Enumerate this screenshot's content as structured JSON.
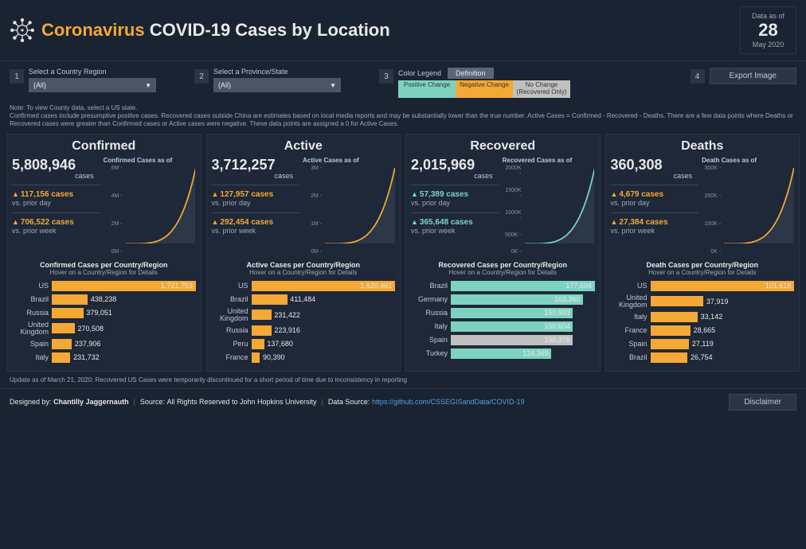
{
  "header": {
    "title_orange": "Coronavirus",
    "title_rest": " COVID-19 Cases by Location",
    "date_label": "Data as of",
    "date_day": "28",
    "date_month": "May 2020"
  },
  "controls": {
    "country_label": "Select a Country Region",
    "country_value": "(All)",
    "state_label": "Select a Province/State",
    "state_value": "(All)",
    "legend_label": "Color Legend",
    "definition_btn": "Definition",
    "legend_items": [
      {
        "label": "Positive Change",
        "color": "#7dd3c0"
      },
      {
        "label": "Negative Change",
        "color": "#f4a836"
      },
      {
        "label": "No Change (Recovered Only)",
        "color": "#c0c0c0"
      }
    ],
    "export_btn": "Export Image"
  },
  "notes": {
    "line1": "Note: To view County data, select a US state.",
    "line2": "Confirmed cases include presumptive positive cases. Recovered cases outside China are estimates based on local media reports and may be substantially lower than the true number.  Active Cases = Confirmed - Recovered - Deaths. There are a few data points where Deaths or Recovered cases were greater than Confirmed cases or Active cases were negative. These data points are assigned a 0 for Active Cases."
  },
  "panels": [
    {
      "title": "Confirmed",
      "total": "5,808,946",
      "cases_label": "cases",
      "delta_day": "117,156 cases",
      "delta_day_sub": "vs. prior day",
      "delta_week": "706,522 cases",
      "delta_week_sub": "vs. prior week",
      "delta_color": "orange",
      "chart_title": "Confirmed Cases as of",
      "chart_color": "#f4a836",
      "y_ticks": [
        "6M -",
        "4M -",
        "2M -",
        "0M -"
      ],
      "bars_title": "Confirmed Cases per Country/Region",
      "bars_sub": "Hover on a Country/Region for Details",
      "bar_color": "#f4a836",
      "bars": [
        {
          "label": "US",
          "value": "1,721,753",
          "pct": 100
        },
        {
          "label": "Brazil",
          "value": "438,238",
          "pct": 25
        },
        {
          "label": "Russia",
          "value": "379,051",
          "pct": 22
        },
        {
          "label": "United Kingdom",
          "value": "270,508",
          "pct": 16
        },
        {
          "label": "Spain",
          "value": "237,906",
          "pct": 14
        },
        {
          "label": "Italy",
          "value": "231,732",
          "pct": 13
        }
      ]
    },
    {
      "title": "Active",
      "total": "3,712,257",
      "cases_label": "cases",
      "delta_day": "127,957 cases",
      "delta_day_sub": "vs. prior day",
      "delta_week": "292,454 cases",
      "delta_week_sub": "vs. prior week",
      "delta_color": "orange",
      "chart_title": "Active Cases as of",
      "chart_color": "#f4a836",
      "y_ticks": [
        "3M -",
        "2M -",
        "1M -",
        "0M -"
      ],
      "bars_title": "Active Cases per Country/Region",
      "bars_sub": "Hover on a Country/Region for Details",
      "bar_color": "#f4a836",
      "bars": [
        {
          "label": "US",
          "value": "1,620,461",
          "pct": 100
        },
        {
          "label": "Brazil",
          "value": "411,484",
          "pct": 25
        },
        {
          "label": "United Kingdom",
          "value": "231,422",
          "pct": 14
        },
        {
          "label": "Russia",
          "value": "223,916",
          "pct": 14
        },
        {
          "label": "Peru",
          "value": "137,680",
          "pct": 9
        },
        {
          "label": "France",
          "value": "90,390",
          "pct": 6
        }
      ]
    },
    {
      "title": "Recovered",
      "total": "2,015,969",
      "cases_label": "cases",
      "delta_day": "57,389 cases",
      "delta_day_sub": "vs. prior day",
      "delta_week": "365,648 cases",
      "delta_week_sub": "vs. prior week",
      "delta_color": "teal",
      "chart_title": "Recovered Cases as of",
      "chart_color": "#7dd3c0",
      "y_ticks": [
        "2000K -",
        "1500K -",
        "1000K -",
        "500K -",
        "0K -"
      ],
      "bars_title": "Recovered Cases per Country/Region",
      "bars_sub": "Hover on a Country/Region for Details",
      "bar_color": "#7dd3c0",
      "bars": [
        {
          "label": "Brazil",
          "value": "177,604",
          "pct": 100
        },
        {
          "label": "Germany",
          "value": "163,360",
          "pct": 92
        },
        {
          "label": "Russia",
          "value": "150,993",
          "pct": 85
        },
        {
          "label": "Italy",
          "value": "150,604",
          "pct": 85
        },
        {
          "label": "Spain",
          "value": "150,376",
          "pct": 85,
          "special_color": "#c0c0c0"
        },
        {
          "label": "Turkey",
          "value": "124,369",
          "pct": 70
        }
      ]
    },
    {
      "title": "Deaths",
      "total": "360,308",
      "cases_label": "cases",
      "delta_day": "4,679 cases",
      "delta_day_sub": "vs. prior day",
      "delta_week": "27,384 cases",
      "delta_week_sub": "vs. prior week",
      "delta_color": "orange",
      "chart_title": "Death Cases as of",
      "chart_color": "#f4a836",
      "y_ticks": [
        "300K -",
        "200K -",
        "100K -",
        "0K -"
      ],
      "bars_title": "Death Cases per Country/Region",
      "bars_sub": "Hover on a Country/Region for Details",
      "bar_color": "#f4a836",
      "bars": [
        {
          "label": "US",
          "value": "101,616",
          "pct": 100
        },
        {
          "label": "United Kingdom",
          "value": "37,919",
          "pct": 37
        },
        {
          "label": "Italy",
          "value": "33,142",
          "pct": 33
        },
        {
          "label": "France",
          "value": "28,665",
          "pct": 28
        },
        {
          "label": "Spain",
          "value": "27,119",
          "pct": 27
        },
        {
          "label": "Brazil",
          "value": "26,754",
          "pct": 26
        }
      ]
    }
  ],
  "footer_note": "Update as of March 21, 2020: Recovered US Cases were temporarily discontinued for a short period of time due to inconsistency in reporting",
  "footer": {
    "designed_label": "Designed by:",
    "designed_value": "Chantilly Jaggernauth",
    "source_label": "Source:",
    "source_value": "All Rights Reserved to John Hopkins University",
    "datasource_label": "Data Source:",
    "datasource_link": "https://github.com/CSSEGISandData/COVID-19",
    "disclaimer_btn": "Disclaimer"
  }
}
